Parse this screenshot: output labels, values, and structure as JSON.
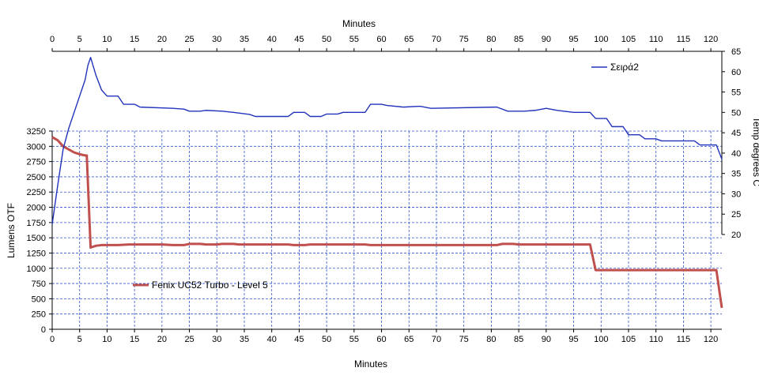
{
  "chart_data": {
    "type": "line",
    "x_axis_bottom": {
      "label": "Minutes",
      "range": [
        0,
        122
      ],
      "ticks": [
        0,
        5,
        10,
        15,
        20,
        25,
        30,
        35,
        40,
        45,
        50,
        55,
        60,
        65,
        70,
        75,
        80,
        85,
        90,
        95,
        100,
        105,
        110,
        115,
        120
      ]
    },
    "x_axis_top": {
      "label": "Minutes",
      "range": [
        0,
        122
      ],
      "ticks": [
        0,
        5,
        10,
        15,
        20,
        25,
        30,
        35,
        40,
        45,
        50,
        55,
        60,
        65,
        70,
        75,
        80,
        85,
        90,
        95,
        100,
        105,
        110,
        115,
        120
      ]
    },
    "y_axis_left": {
      "label": "Lumens OTF",
      "range": [
        0,
        3250
      ],
      "ticks": [
        0,
        250,
        500,
        750,
        1000,
        1250,
        1500,
        1750,
        2000,
        2250,
        2500,
        2750,
        3000,
        3250
      ]
    },
    "y_axis_right": {
      "label": "Temp degrees C",
      "range": [
        20,
        65
      ],
      "ticks": [
        20,
        25,
        30,
        35,
        40,
        45,
        50,
        55,
        60,
        65
      ]
    },
    "grid": true,
    "series": [
      {
        "name": "Fenix UC52  Turbo  - Level 5",
        "axis": "left",
        "color": "#C0504D",
        "legend_position": "lower-left",
        "points": [
          [
            0,
            3150
          ],
          [
            1,
            3100
          ],
          [
            2,
            3000
          ],
          [
            3,
            2950
          ],
          [
            4,
            2900
          ],
          [
            5,
            2870
          ],
          [
            6,
            2850
          ],
          [
            6.3,
            2850
          ],
          [
            7,
            1340
          ],
          [
            8,
            1370
          ],
          [
            9,
            1380
          ],
          [
            10,
            1380
          ],
          [
            12,
            1380
          ],
          [
            14,
            1390
          ],
          [
            20,
            1390
          ],
          [
            22,
            1380
          ],
          [
            24,
            1380
          ],
          [
            25,
            1400
          ],
          [
            27,
            1400
          ],
          [
            28,
            1390
          ],
          [
            30,
            1390
          ],
          [
            31,
            1400
          ],
          [
            33,
            1400
          ],
          [
            34,
            1390
          ],
          [
            43,
            1390
          ],
          [
            44,
            1380
          ],
          [
            46,
            1380
          ],
          [
            47,
            1390
          ],
          [
            57,
            1390
          ],
          [
            58,
            1380
          ],
          [
            81,
            1380
          ],
          [
            82,
            1400
          ],
          [
            84,
            1400
          ],
          [
            85,
            1390
          ],
          [
            98,
            1390
          ],
          [
            99,
            970
          ],
          [
            121,
            970
          ],
          [
            122,
            350
          ]
        ]
      },
      {
        "name": "Σειρά2",
        "axis": "right",
        "color": "#2233BB",
        "legend_position": "top-right",
        "points": [
          [
            0,
            22.5
          ],
          [
            1,
            32
          ],
          [
            2,
            41
          ],
          [
            3,
            46
          ],
          [
            4,
            50
          ],
          [
            5,
            54
          ],
          [
            6,
            58
          ],
          [
            6.5,
            61.5
          ],
          [
            7,
            63.5
          ],
          [
            8,
            59
          ],
          [
            9,
            55.5
          ],
          [
            10,
            54
          ],
          [
            12,
            54
          ],
          [
            13,
            52
          ],
          [
            15,
            52
          ],
          [
            16,
            51.3
          ],
          [
            22,
            51
          ],
          [
            24,
            50.8
          ],
          [
            25,
            50.3
          ],
          [
            27,
            50.3
          ],
          [
            28,
            50.5
          ],
          [
            31,
            50.3
          ],
          [
            33,
            50
          ],
          [
            36,
            49.5
          ],
          [
            37,
            49
          ],
          [
            42,
            49
          ],
          [
            43,
            49
          ],
          [
            44,
            50
          ],
          [
            46,
            50
          ],
          [
            47,
            49
          ],
          [
            49,
            49
          ],
          [
            50,
            49.6
          ],
          [
            52,
            49.6
          ],
          [
            53,
            50
          ],
          [
            57,
            50
          ],
          [
            58,
            52
          ],
          [
            60,
            52
          ],
          [
            61,
            51.7
          ],
          [
            64,
            51.3
          ],
          [
            67,
            51.5
          ],
          [
            69,
            51
          ],
          [
            81,
            51.3
          ],
          [
            83,
            50.3
          ],
          [
            86,
            50.3
          ],
          [
            88,
            50.5
          ],
          [
            90,
            51
          ],
          [
            92,
            50.5
          ],
          [
            95,
            50
          ],
          [
            98,
            50
          ],
          [
            99,
            48.5
          ],
          [
            101,
            48.5
          ],
          [
            102,
            46.5
          ],
          [
            104,
            46.5
          ],
          [
            105,
            44.5
          ],
          [
            107,
            44.5
          ],
          [
            108,
            43.5
          ],
          [
            110,
            43.5
          ],
          [
            111,
            43
          ],
          [
            117,
            43
          ],
          [
            118,
            42
          ],
          [
            121,
            42
          ],
          [
            122,
            38.5
          ]
        ]
      }
    ]
  }
}
